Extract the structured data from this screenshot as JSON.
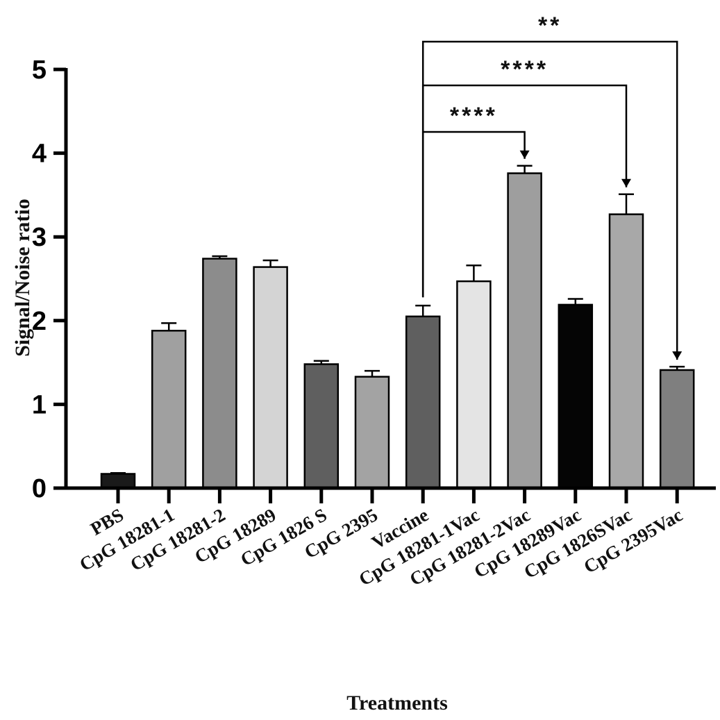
{
  "chart_data": {
    "type": "bar",
    "xlabel": "Treatments",
    "ylabel": "Signal/Noise ratio",
    "ylim": [
      0,
      5
    ],
    "yticks": [
      "0",
      "1",
      "2",
      "3",
      "4",
      "5"
    ],
    "grid": false,
    "categories": [
      "PBS",
      "CpG 18281-1",
      "CpG 18281-2",
      "CpG 18289",
      "CpG 1826 S",
      "CpG 2395",
      "Vaccine",
      "CpG 18281-1Vac",
      "CpG 18281-2Vac",
      "CpG 18289Vac",
      "CpG 1826SVac",
      "CpG 2395Vac"
    ],
    "values": [
      0.17,
      1.88,
      2.74,
      2.64,
      1.48,
      1.33,
      2.05,
      2.47,
      3.76,
      2.19,
      3.27,
      1.41
    ],
    "errors": [
      0.01,
      0.09,
      0.03,
      0.08,
      0.04,
      0.07,
      0.13,
      0.19,
      0.09,
      0.07,
      0.24,
      0.04
    ],
    "bar_colors": [
      "#1a1a1a",
      "#a0a0a0",
      "#8c8c8c",
      "#d4d4d4",
      "#5f5f5f",
      "#a3a3a3",
      "#5f5f5f",
      "#e4e4e4",
      "#9e9e9e",
      "#050505",
      "#a8a8a8",
      "#7f7f7f"
    ],
    "comparisons": [
      {
        "from": "Vaccine",
        "to": "CpG 18281-2Vac",
        "label": "****"
      },
      {
        "from": "Vaccine",
        "to": "CpG 1826SVac",
        "label": "****"
      },
      {
        "from": "Vaccine",
        "to": "CpG 2395Vac",
        "label": "**"
      }
    ]
  }
}
